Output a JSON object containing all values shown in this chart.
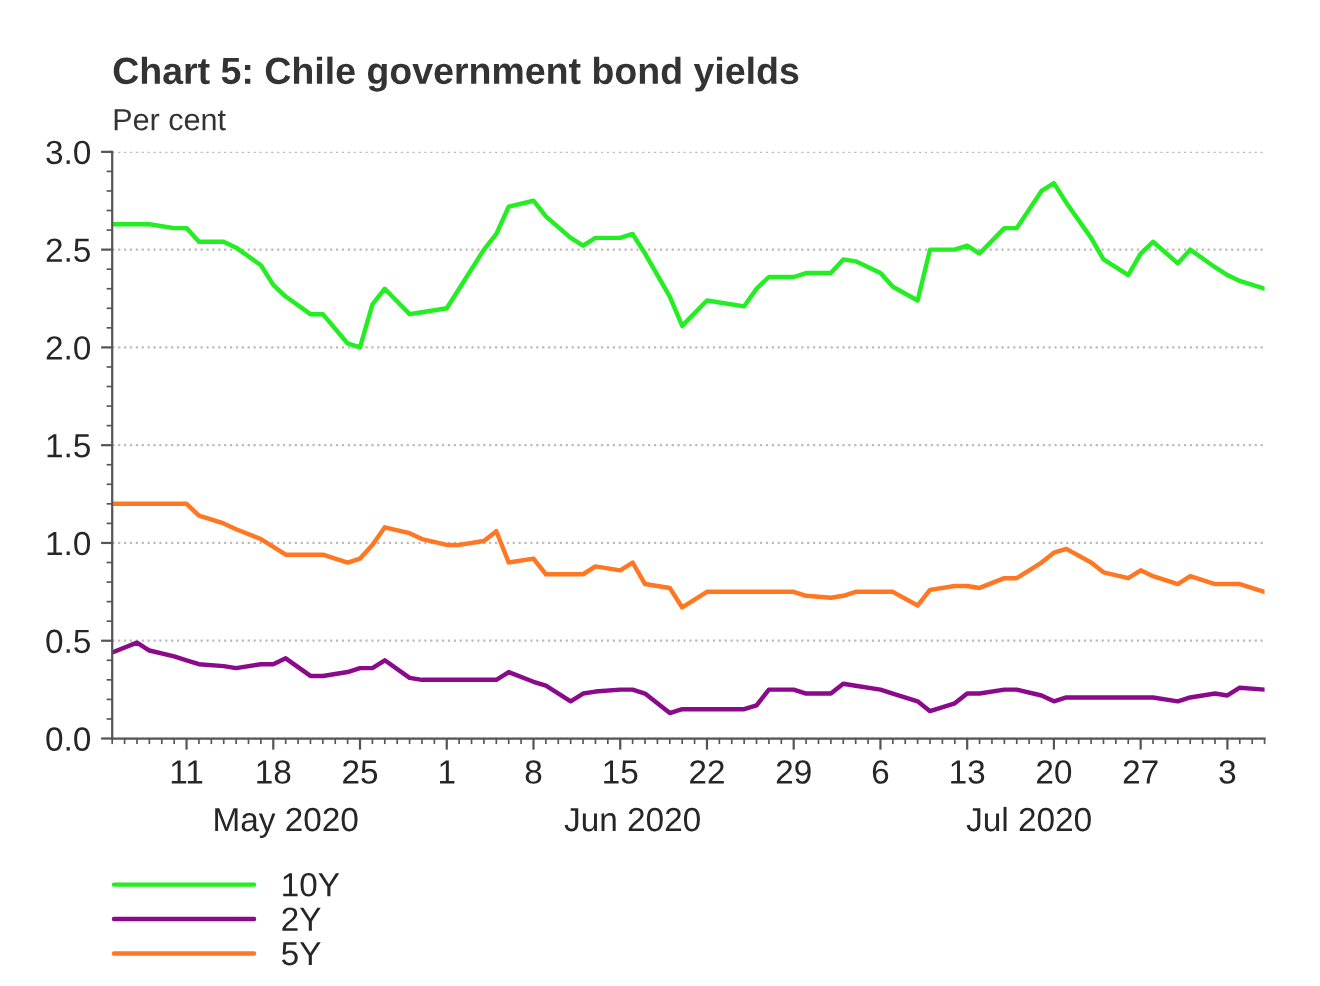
{
  "chart_data": {
    "type": "line",
    "title": "Chart 5: Chile government bond yields",
    "ylabel": "Per cent",
    "x": [
      "2020-05-05",
      "2020-05-07",
      "2020-05-08",
      "2020-05-10",
      "2020-05-11",
      "2020-05-12",
      "2020-05-14",
      "2020-05-15",
      "2020-05-17",
      "2020-05-18",
      "2020-05-19",
      "2020-05-21",
      "2020-05-22",
      "2020-05-24",
      "2020-05-25",
      "2020-05-26",
      "2020-05-27",
      "2020-05-29",
      "2020-05-30",
      "2020-06-01",
      "2020-06-02",
      "2020-06-04",
      "2020-06-05",
      "2020-06-06",
      "2020-06-08",
      "2020-06-09",
      "2020-06-11",
      "2020-06-12",
      "2020-06-13",
      "2020-06-15",
      "2020-06-16",
      "2020-06-17",
      "2020-06-19",
      "2020-06-20",
      "2020-06-22",
      "2020-06-25",
      "2020-06-26",
      "2020-06-27",
      "2020-06-29",
      "2020-06-30",
      "2020-07-02",
      "2020-07-03",
      "2020-07-04",
      "2020-07-06",
      "2020-07-07",
      "2020-07-09",
      "2020-07-10",
      "2020-07-12",
      "2020-07-13",
      "2020-07-14",
      "2020-07-16",
      "2020-07-17",
      "2020-07-19",
      "2020-07-20",
      "2020-07-21",
      "2020-07-23",
      "2020-07-24",
      "2020-07-26",
      "2020-07-27",
      "2020-07-28",
      "2020-07-30",
      "2020-07-31",
      "2020-08-02",
      "2020-08-03",
      "2020-08-04",
      "2020-08-06"
    ],
    "series": [
      {
        "name": "10Y",
        "color": "#22ee22",
        "values": [
          2.63,
          2.63,
          2.63,
          2.61,
          2.61,
          2.54,
          2.54,
          2.51,
          2.42,
          2.32,
          2.26,
          2.17,
          2.17,
          2.02,
          2.0,
          2.22,
          2.3,
          2.17,
          2.18,
          2.2,
          2.3,
          2.5,
          2.58,
          2.72,
          2.75,
          2.67,
          2.56,
          2.52,
          2.56,
          2.56,
          2.58,
          2.48,
          2.26,
          2.11,
          2.24,
          2.21,
          2.3,
          2.36,
          2.36,
          2.38,
          2.38,
          2.45,
          2.44,
          2.38,
          2.31,
          2.24,
          2.5,
          2.5,
          2.52,
          2.48,
          2.61,
          2.61,
          2.8,
          2.84,
          2.74,
          2.56,
          2.45,
          2.37,
          2.48,
          2.54,
          2.43,
          2.5,
          2.41,
          2.37,
          2.34,
          2.3
        ]
      },
      {
        "name": "2Y",
        "color": "#8b0a8b",
        "values": [
          0.44,
          0.49,
          0.45,
          0.42,
          0.4,
          0.38,
          0.37,
          0.36,
          0.38,
          0.38,
          0.41,
          0.32,
          0.32,
          0.34,
          0.36,
          0.36,
          0.4,
          0.31,
          0.3,
          0.3,
          0.3,
          0.3,
          0.3,
          0.34,
          0.29,
          0.27,
          0.19,
          0.23,
          0.24,
          0.25,
          0.25,
          0.23,
          0.13,
          0.15,
          0.15,
          0.15,
          0.17,
          0.25,
          0.25,
          0.23,
          0.23,
          0.28,
          0.27,
          0.25,
          0.23,
          0.19,
          0.14,
          0.18,
          0.23,
          0.23,
          0.25,
          0.25,
          0.22,
          0.19,
          0.21,
          0.21,
          0.21,
          0.21,
          0.21,
          0.21,
          0.19,
          0.21,
          0.23,
          0.22,
          0.26,
          0.25
        ]
      },
      {
        "name": "5Y",
        "color": "#ff7722",
        "values": [
          1.2,
          1.2,
          1.2,
          1.2,
          1.2,
          1.14,
          1.1,
          1.07,
          1.02,
          0.98,
          0.94,
          0.94,
          0.94,
          0.9,
          0.92,
          0.99,
          1.08,
          1.05,
          1.02,
          0.99,
          0.99,
          1.01,
          1.06,
          0.9,
          0.92,
          0.84,
          0.84,
          0.84,
          0.88,
          0.86,
          0.9,
          0.79,
          0.77,
          0.67,
          0.75,
          0.75,
          0.75,
          0.75,
          0.75,
          0.73,
          0.72,
          0.73,
          0.75,
          0.75,
          0.75,
          0.68,
          0.76,
          0.78,
          0.78,
          0.77,
          0.82,
          0.82,
          0.9,
          0.95,
          0.97,
          0.9,
          0.85,
          0.82,
          0.86,
          0.83,
          0.79,
          0.83,
          0.79,
          0.79,
          0.79,
          0.75
        ]
      }
    ],
    "xlim": [
      "2020-05-05",
      "2020-08-06"
    ],
    "xticks": [
      {
        "value": "2020-05-11",
        "label": "11"
      },
      {
        "value": "2020-05-18",
        "label": "18"
      },
      {
        "value": "2020-05-25",
        "label": "25"
      },
      {
        "value": "2020-06-01",
        "label": "1"
      },
      {
        "value": "2020-06-08",
        "label": "8"
      },
      {
        "value": "2020-06-15",
        "label": "15"
      },
      {
        "value": "2020-06-22",
        "label": "22"
      },
      {
        "value": "2020-06-29",
        "label": "29"
      },
      {
        "value": "2020-07-06",
        "label": "6"
      },
      {
        "value": "2020-07-13",
        "label": "13"
      },
      {
        "value": "2020-07-20",
        "label": "20"
      },
      {
        "value": "2020-07-27",
        "label": "27"
      },
      {
        "value": "2020-08-03",
        "label": "3"
      }
    ],
    "x2lim": [
      "2020-05-05",
      "2020-08-06"
    ],
    "x2ticks": [
      {
        "value": "2020-05-19",
        "label": "May 2020"
      },
      {
        "value": "2020-06-16",
        "label": "Jun 2020"
      },
      {
        "value": "2020-07-18",
        "label": "Jul 2020"
      }
    ],
    "ylim": [
      0,
      3
    ],
    "yticks": [
      {
        "value": 0,
        "label": "0.0"
      },
      {
        "value": 0.5,
        "label": "0.5"
      },
      {
        "value": 1,
        "label": "1.0"
      },
      {
        "value": 1.5,
        "label": "1.5"
      },
      {
        "value": 2,
        "label": "2.0"
      },
      {
        "value": 2.5,
        "label": "2.5"
      },
      {
        "value": 3,
        "label": "3.0"
      }
    ],
    "grid": "y",
    "legend": "bottom left",
    "marker": "none",
    "line_style": "solid"
  }
}
